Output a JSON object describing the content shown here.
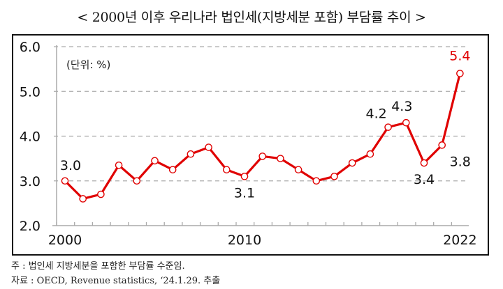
{
  "header": {
    "title": "< 2000년 이후 우리나라 법인세(지방세분 포함) 부담률 추이 >"
  },
  "chart": {
    "unit_label": "(단위: %)"
  },
  "footnotes": {
    "note": "주 : 법인세 지방세분을 포함한 부담률 수준임.",
    "source": "자료 : OECD, Revenue statistics, ‘24.1.29. 추출"
  },
  "colors": {
    "line": "#E00000",
    "highlight_label": "#E00000",
    "grid": "#AAAAAA",
    "axis": "#AAAAAA",
    "frame": "#111111"
  },
  "chart_data": {
    "type": "line",
    "title": "< 2000년 이후 우리나라 법인세(지방세분 포함) 부담률 추이 >",
    "xlabel": "",
    "ylabel": "(단위: %)",
    "x": [
      2000,
      2001,
      2002,
      2003,
      2004,
      2005,
      2006,
      2007,
      2008,
      2009,
      2010,
      2011,
      2012,
      2013,
      2014,
      2015,
      2016,
      2017,
      2018,
      2019,
      2020,
      2021,
      2022
    ],
    "series": [
      {
        "name": "법인세(지방세분 포함) 부담률",
        "values": [
          3.0,
          2.6,
          2.7,
          3.35,
          3.0,
          3.45,
          3.25,
          3.6,
          3.75,
          3.25,
          3.1,
          3.55,
          3.5,
          3.25,
          3.0,
          3.1,
          3.4,
          3.6,
          4.2,
          4.3,
          3.4,
          3.8,
          5.4
        ]
      }
    ],
    "x_tick_labels": [
      "2000",
      "2010",
      "2022"
    ],
    "y_tick_labels": [
      "2.0",
      "3.0",
      "4.0",
      "5.0",
      "6.0"
    ],
    "ylim": [
      2.0,
      6.0
    ],
    "grid": "horizontal dashed",
    "legend": "none",
    "annotations": [
      {
        "x": 2000,
        "text": "3.0",
        "position": "above"
      },
      {
        "x": 2010,
        "text": "3.1",
        "position": "below"
      },
      {
        "x": 2018,
        "text": "4.2",
        "position": "above"
      },
      {
        "x": 2019,
        "text": "4.3",
        "position": "above"
      },
      {
        "x": 2020,
        "text": "3.4",
        "position": "below"
      },
      {
        "x": 2021,
        "text": "3.8",
        "position": "right"
      },
      {
        "x": 2022,
        "text": "5.4",
        "position": "above",
        "color": "#E00000"
      }
    ]
  }
}
